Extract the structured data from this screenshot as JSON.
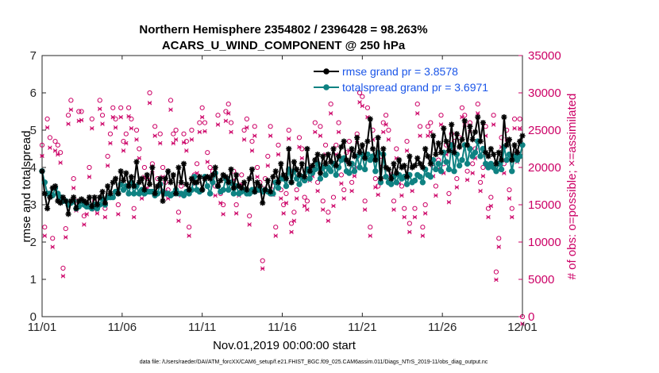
{
  "chart_data": {
    "type": "line",
    "title_line1": "Northern Hemisphere 2354802 / 2396428 = 98.263%",
    "title_line2": "ACARS_U_WIND_COMPONENT @ 250 hPa",
    "xlabel": "Nov.01,2019 00:00:00 start",
    "ylabel_left": "rmse and totalspread",
    "ylabel_right": "# of obs: o=possible; ×=assimilated",
    "xlim": [
      0,
      30
    ],
    "ylim_left": [
      0,
      7
    ],
    "ylim_right": [
      0,
      35000
    ],
    "x_ticks": [
      {
        "value": 0,
        "label": "11/01"
      },
      {
        "value": 5,
        "label": "11/06"
      },
      {
        "value": 10,
        "label": "11/11"
      },
      {
        "value": 15,
        "label": "11/16"
      },
      {
        "value": 20,
        "label": "11/21"
      },
      {
        "value": 25,
        "label": "11/26"
      },
      {
        "value": 30,
        "label": "12/01"
      }
    ],
    "y_ticks_left": [
      0,
      1,
      2,
      3,
      4,
      5,
      6,
      7
    ],
    "y_ticks_right": [
      0,
      5000,
      10000,
      15000,
      20000,
      25000,
      30000,
      35000
    ],
    "footnote": "data file: /Users/raeder/DAI/ATM_forcXX/CAM6_setup/f.e21.FHIST_BGC.f09_025.CAM6assim.011/Diags_NTrS_2019-11/obs_diag_output.nc",
    "colors": {
      "rmse": "#000000",
      "spread": "#0f8282",
      "obs": "#cc0066",
      "legend_text": "#1a55e8",
      "axis": "#262626"
    },
    "series": [
      {
        "name": "rmse grand pr = 3.8578",
        "axis": "left",
        "values": [
          3.9,
          3.3,
          2.9,
          3.2,
          3.45,
          3.5,
          3.1,
          3.05,
          3.2,
          3.1,
          2.75,
          3.1,
          3.2,
          2.9,
          3.1,
          3.15,
          3.1,
          3.05,
          3.2,
          2.95,
          3.2,
          3.0,
          3.2,
          3.35,
          3.05,
          3.5,
          3.3,
          3.6,
          3.7,
          3.3,
          3.9,
          3.65,
          3.85,
          3.5,
          3.75,
          3.5,
          4.15,
          3.6,
          3.7,
          3.4,
          3.8,
          3.55,
          4.0,
          3.3,
          3.5,
          3.7,
          3.1,
          3.7,
          3.9,
          3.6,
          3.8,
          3.3,
          4.0,
          3.6,
          4.1,
          3.55,
          3.4,
          3.7,
          3.6,
          3.6,
          3.75,
          3.4,
          3.7,
          3.75,
          3.7,
          3.8,
          4.0,
          3.5,
          3.65,
          3.8,
          3.75,
          3.6,
          3.95,
          3.45,
          3.8,
          3.5,
          3.45,
          3.6,
          3.4,
          3.7,
          3.95,
          3.35,
          3.6,
          3.5,
          3.05,
          3.4,
          3.65,
          3.35,
          3.75,
          3.9,
          3.6,
          4.1,
          3.8,
          3.7,
          4.5,
          3.6,
          4.15,
          3.95,
          3.8,
          4.1,
          3.75,
          4.5,
          3.9,
          4.05,
          4.2,
          4.35,
          3.85,
          4.3,
          4.1,
          4.35,
          4.15,
          4.5,
          4.05,
          4.3,
          4.55,
          4.7,
          4.2,
          4.1,
          4.5,
          4.3,
          4.8,
          4.4,
          4.6,
          4.25,
          4.7,
          5.3,
          4.5,
          4.2,
          4.8,
          3.7,
          4.5,
          4.0,
          3.95,
          3.7,
          4.1,
          3.85,
          4.2,
          4.0,
          4.05,
          3.75,
          4.3,
          4.0,
          4.05,
          4.25,
          4.1,
          4.0,
          4.5,
          4.3,
          4.1,
          4.85,
          4.35,
          4.65,
          4.4,
          5.05,
          4.7,
          4.45,
          5.15,
          4.4,
          4.9,
          4.55,
          4.75,
          5.25,
          4.6,
          5.1,
          4.75,
          4.95,
          5.35,
          4.7,
          5.2,
          4.4,
          4.3,
          4.5,
          4.35,
          4.1,
          4.4,
          4.2,
          5.35,
          4.6,
          4.75,
          4.2,
          4.6,
          4.4,
          4.7,
          4.85
        ]
      },
      {
        "name": "totalspread grand pr = 3.6971",
        "axis": "left",
        "values": [
          3.9,
          3.6,
          3.3,
          3.3,
          3.25,
          3.45,
          3.3,
          3.2,
          3.1,
          3.1,
          3.0,
          3.05,
          3.1,
          2.9,
          2.95,
          3.1,
          3.0,
          2.95,
          2.95,
          2.9,
          3.0,
          2.9,
          3.0,
          3.15,
          3.0,
          3.2,
          3.2,
          3.2,
          3.35,
          3.3,
          3.55,
          3.4,
          3.5,
          3.3,
          3.6,
          3.3,
          3.5,
          3.3,
          3.4,
          3.3,
          3.35,
          3.35,
          3.35,
          3.25,
          3.3,
          3.55,
          3.35,
          3.3,
          3.3,
          3.25,
          3.3,
          3.4,
          3.3,
          3.3,
          3.25,
          3.35,
          3.3,
          3.4,
          3.75,
          3.4,
          3.35,
          3.4,
          3.75,
          3.5,
          3.3,
          3.6,
          3.85,
          3.5,
          3.35,
          3.4,
          3.7,
          3.4,
          3.6,
          3.3,
          3.5,
          3.3,
          3.35,
          3.4,
          3.3,
          3.3,
          3.4,
          3.35,
          3.4,
          3.4,
          3.35,
          3.4,
          3.35,
          3.3,
          3.3,
          3.6,
          3.45,
          3.7,
          3.7,
          3.5,
          3.95,
          3.6,
          3.9,
          3.7,
          3.55,
          3.75,
          3.65,
          3.95,
          3.7,
          3.85,
          3.95,
          4.1,
          3.7,
          4.0,
          3.8,
          4.0,
          3.9,
          4.1,
          3.8,
          4.0,
          4.2,
          4.25,
          3.9,
          3.85,
          4.1,
          3.9,
          4.3,
          4.0,
          4.35,
          3.95,
          4.35,
          4.2,
          4.3,
          3.9,
          4.4,
          3.6,
          4.35,
          3.75,
          3.6,
          3.55,
          3.75,
          3.6,
          3.8,
          3.7,
          3.75,
          3.55,
          3.8,
          3.6,
          3.65,
          3.8,
          3.75,
          3.6,
          3.95,
          3.8,
          3.75,
          4.2,
          3.95,
          4.1,
          3.9,
          4.4,
          4.15,
          3.95,
          4.6,
          3.9,
          4.35,
          4.05,
          4.2,
          4.6,
          4.1,
          4.5,
          4.3,
          4.4,
          4.7,
          4.3,
          4.5,
          4.1,
          4.0,
          4.1,
          4.0,
          3.9,
          4.1,
          3.95,
          4.55,
          4.2,
          4.35,
          3.9,
          4.3,
          4.2,
          4.3,
          4.6
        ]
      },
      {
        "name": "obs possible",
        "axis": "right",
        "marker": "o",
        "values": [
          23000,
          12000,
          26500,
          24000,
          10500,
          23500,
          23000,
          22000,
          6500,
          11800,
          27000,
          29000,
          18500,
          15500,
          27500,
          27500,
          13500,
          15000,
          20000,
          26500,
          15500,
          15000,
          29000,
          27000,
          14500,
          21500,
          24500,
          28000,
          26500,
          15000,
          28000,
          23500,
          24500,
          28000,
          26500,
          14500,
          25000,
          22500,
          17000,
          20000,
          18500,
          30000,
          20500,
          25500,
          18500,
          24500,
          20000,
          18000,
          17000,
          29000,
          24500,
          25000,
          14000,
          17500,
          24500,
          23500,
          12000,
          25000,
          19000,
          20500,
          26000,
          28000,
          26000,
          22000,
          20000,
          19500,
          17500,
          27000,
          16500,
          15000,
          27500,
          28500,
          26000,
          19500,
          15000,
          17500,
          19000,
          25000,
          26500,
          13500,
          23500,
          25500,
          20000,
          18000,
          7500,
          18500,
          21500,
          25500,
          17500,
          12000,
          23000,
          17000,
          15000,
          16500,
          25000,
          12500,
          14000,
          17000,
          24000,
          22500,
          16000,
          15500,
          19500,
          20000,
          26000,
          18000,
          25500,
          15500,
          23000,
          14000,
          28500,
          16000,
          23000,
          26000,
          19000,
          17000,
          22000,
          23500,
          18000,
          20000,
          24500,
          30000,
          29500,
          15500,
          28000,
          12000,
          25000,
          18500,
          17500,
          21500,
          26000,
          27000,
          25000,
          19000,
          15500,
          22500,
          19000,
          17500,
          14500,
          23500,
          12500,
          18000,
          14500,
          28500,
          25500,
          12000,
          15000,
          25500,
          26000,
          20000,
          17500,
          21000,
          27000,
          20500,
          23000,
          16500,
          24500,
          23500,
          18500,
          24000,
          28000,
          27000,
          19500,
          26000,
          20500,
          22500,
          28500,
          18000,
          20000,
          25500,
          14500,
          16000,
          27000,
          6000,
          10500,
          24000,
          20500,
          25000,
          17000,
          14500,
          26500,
          22000,
          26500,
          0
        ]
      },
      {
        "name": "obs assimilated",
        "axis": "right",
        "marker": "x",
        "values": [
          22500,
          11800,
          26300,
          23600,
          10300,
          23200,
          22700,
          21600,
          6400,
          11600,
          26800,
          28700,
          18200,
          15200,
          27200,
          27300,
          13300,
          14700,
          19700,
          26200,
          15300,
          14800,
          28800,
          26800,
          14300,
          21200,
          24200,
          27700,
          26300,
          14700,
          27700,
          23200,
          24200,
          27800,
          26200,
          14300,
          24700,
          22200,
          16800,
          19700,
          18200,
          29600,
          20200,
          25200,
          18300,
          24200,
          19700,
          17700,
          16800,
          28700,
          24200,
          24700,
          13800,
          17200,
          24300,
          23200,
          11800,
          24700,
          18700,
          20200,
          25700,
          27700,
          25800,
          21700,
          19700,
          19300,
          17200,
          26700,
          16200,
          14700,
          27200,
          28200,
          25700,
          19300,
          14800,
          17200,
          18700,
          24700,
          26300,
          13300,
          23200,
          25200,
          19700,
          17800,
          7400,
          18200,
          21200,
          25200,
          17300,
          11800,
          22700,
          16800,
          14800,
          16200,
          24800,
          12300,
          13800,
          16800,
          23700,
          22200,
          15800,
          15300,
          19200,
          19800,
          25700,
          17800,
          25200,
          15300,
          22700,
          13800,
          28200,
          15800,
          22700,
          25700,
          18800,
          16800,
          21700,
          23200,
          17800,
          19800,
          24200,
          29700,
          29200,
          15300,
          27700,
          11800,
          24700,
          18300,
          17300,
          21200,
          25700,
          26700,
          24700,
          18800,
          15300,
          22200,
          18800,
          17200,
          14300,
          23200,
          12300,
          17800,
          14300,
          28200,
          25200,
          11800,
          14800,
          25200,
          25700,
          19800,
          17200,
          20800,
          26700,
          20200,
          22700,
          16300,
          24200,
          23200,
          18300,
          23700,
          27700,
          26700,
          19300,
          25700,
          20200,
          22200,
          28200,
          17800,
          19800,
          25200,
          14300,
          15800,
          26700,
          5900,
          10300,
          23700,
          20200,
          24700,
          16800,
          14300,
          26200,
          21700,
          26200,
          0
        ]
      }
    ]
  }
}
